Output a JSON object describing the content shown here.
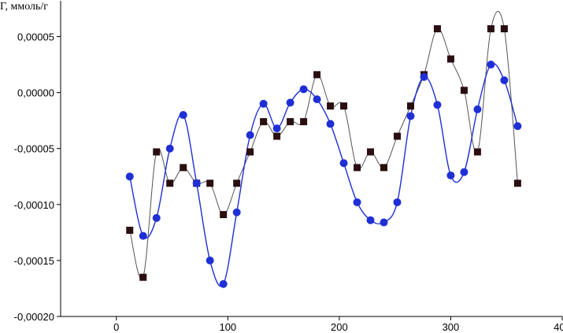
{
  "chart_data": {
    "type": "line",
    "title": "",
    "ylabel": "Г, ммоль/г",
    "xlabel": "",
    "xlim": [
      -50,
      400
    ],
    "ylim": [
      -0.0002,
      8.2e-05
    ],
    "x_ticks": [
      0,
      100,
      200,
      300,
      400
    ],
    "x_tick_labels": [
      "0",
      "100",
      "200",
      "300",
      "400"
    ],
    "y_ticks": [
      -0.0002,
      -0.00015,
      -0.0001,
      -5e-05,
      0.0,
      5e-05
    ],
    "y_tick_labels": [
      "-0,00020",
      "-0,00015",
      "-0,00010",
      "-0,00005",
      "0,00000",
      "0,00005"
    ],
    "grid": false,
    "series": [
      {
        "marker": "square",
        "color": "#2a0f10",
        "line_color": "#555555",
        "points": [
          [
            12,
            -0.000123
          ],
          [
            24,
            -0.000165
          ],
          [
            36,
            -5.3e-05
          ],
          [
            48,
            -8.1e-05
          ],
          [
            60,
            -6.7e-05
          ],
          [
            72,
            -8.1e-05
          ],
          [
            84,
            -8.1e-05
          ],
          [
            96,
            -0.000109
          ],
          [
            108,
            -8.1e-05
          ],
          [
            120,
            -5.3e-05
          ],
          [
            132,
            -2.6e-05
          ],
          [
            144,
            -3.9e-05
          ],
          [
            156,
            -2.6e-05
          ],
          [
            168,
            -2.6e-05
          ],
          [
            180,
            1.6e-05
          ],
          [
            192,
            -1.2e-05
          ],
          [
            204,
            -1.2e-05
          ],
          [
            216,
            -6.7e-05
          ],
          [
            228,
            -5.3e-05
          ],
          [
            240,
            -6.7e-05
          ],
          [
            252,
            -3.9e-05
          ],
          [
            264,
            -1.2e-05
          ],
          [
            276,
            1.6e-05
          ],
          [
            288,
            5.7e-05
          ],
          [
            300,
            3e-05
          ],
          [
            312,
            2e-06
          ],
          [
            324,
            -5.3e-05
          ],
          [
            336,
            5.7e-05
          ],
          [
            348,
            5.7e-05
          ],
          [
            360,
            -8.1e-05
          ]
        ]
      },
      {
        "marker": "circle",
        "color": "#1f2fd6",
        "line_color": "#1f2fd6",
        "points": [
          [
            12,
            -7.5e-05
          ],
          [
            24,
            -0.000128
          ],
          [
            36,
            -0.000112
          ],
          [
            48,
            -5e-05
          ],
          [
            60,
            -2e-05
          ],
          [
            72,
            -8.1e-05
          ],
          [
            84,
            -0.00015
          ],
          [
            96,
            -0.000171
          ],
          [
            108,
            -0.000107
          ],
          [
            120,
            -3.8e-05
          ],
          [
            132,
            -1e-05
          ],
          [
            144,
            -3.2e-05
          ],
          [
            156,
            -9e-06
          ],
          [
            168,
            3e-06
          ],
          [
            180,
            -6e-06
          ],
          [
            192,
            -2.8e-05
          ],
          [
            204,
            -6.3e-05
          ],
          [
            216,
            -9.8e-05
          ],
          [
            228,
            -0.000114
          ],
          [
            240,
            -0.000116
          ],
          [
            252,
            -9.8e-05
          ],
          [
            264,
            -2.1e-05
          ],
          [
            276,
            1.4e-05
          ],
          [
            288,
            -1.1e-05
          ],
          [
            300,
            -7.4e-05
          ],
          [
            312,
            -7.1e-05
          ],
          [
            324,
            -1.5e-05
          ],
          [
            336,
            2.5e-05
          ],
          [
            348,
            1.1e-05
          ],
          [
            360,
            -3e-05
          ]
        ]
      }
    ]
  }
}
